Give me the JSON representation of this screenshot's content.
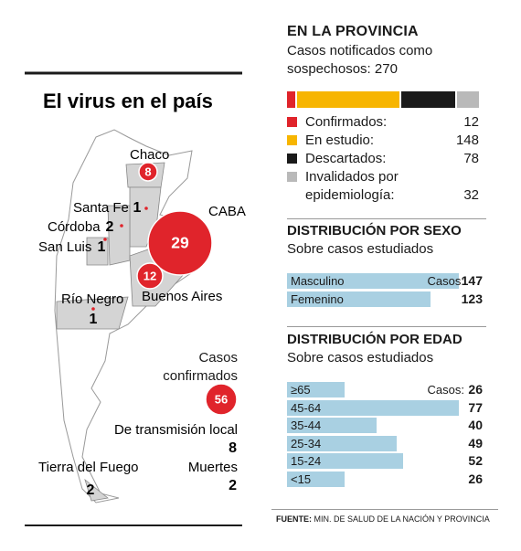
{
  "map": {
    "title": "El virus en el país",
    "regions": [
      {
        "name": "Chaco",
        "value": 8
      },
      {
        "name": "Santa Fe",
        "value": 1
      },
      {
        "name": "Córdoba",
        "value": 2
      },
      {
        "name": "San Luis",
        "value": 1
      },
      {
        "name": "CABA",
        "value": 29
      },
      {
        "name": "Buenos Aires",
        "value": 12
      },
      {
        "name": "Río Negro",
        "value": 1
      },
      {
        "name": "Tierra del Fuego",
        "value": 2
      }
    ],
    "confirmed": {
      "label": "Casos confirmados",
      "value": 56
    },
    "local": {
      "label": "De transmisión local",
      "value": 8
    },
    "deaths": {
      "label": "Muertes",
      "value": 2
    }
  },
  "province": {
    "title": "EN LA PROVINCIA",
    "subtitle": "Casos notificados como sospechosos:",
    "total": 270
  },
  "chart_data": [
    {
      "type": "stacked_bar",
      "categories": [
        "Confirmados:",
        "En estudio:",
        "Descartados:",
        "Invalidados por epidemiología:"
      ],
      "values": [
        12,
        148,
        78,
        32
      ],
      "colors": [
        "#e0242b",
        "#f7b500",
        "#1a1a1a",
        "#b9b9b9"
      ]
    },
    {
      "type": "bar",
      "title": "DISTRIBUCIÓN POR SEXO",
      "subtitle": "Sobre casos estudiados",
      "value_prefix": "Casos:",
      "categories": [
        "Masculino",
        "Femenino"
      ],
      "values": [
        147,
        123
      ],
      "color": "#a9d0e2"
    },
    {
      "type": "bar",
      "title": "DISTRIBUCIÓN POR EDAD",
      "subtitle": "Sobre casos estudiados",
      "value_prefix": "Casos:",
      "categories": [
        "≥65",
        "45-64",
        "35-44",
        "25-34",
        "15-24",
        "<15"
      ],
      "values": [
        26,
        77,
        40,
        49,
        52,
        26
      ],
      "color": "#a9d0e2"
    }
  ],
  "source": {
    "label": "FUENTE:",
    "text": "MIN. DE SALUD DE LA NACIÓN Y PROVINCIA"
  }
}
